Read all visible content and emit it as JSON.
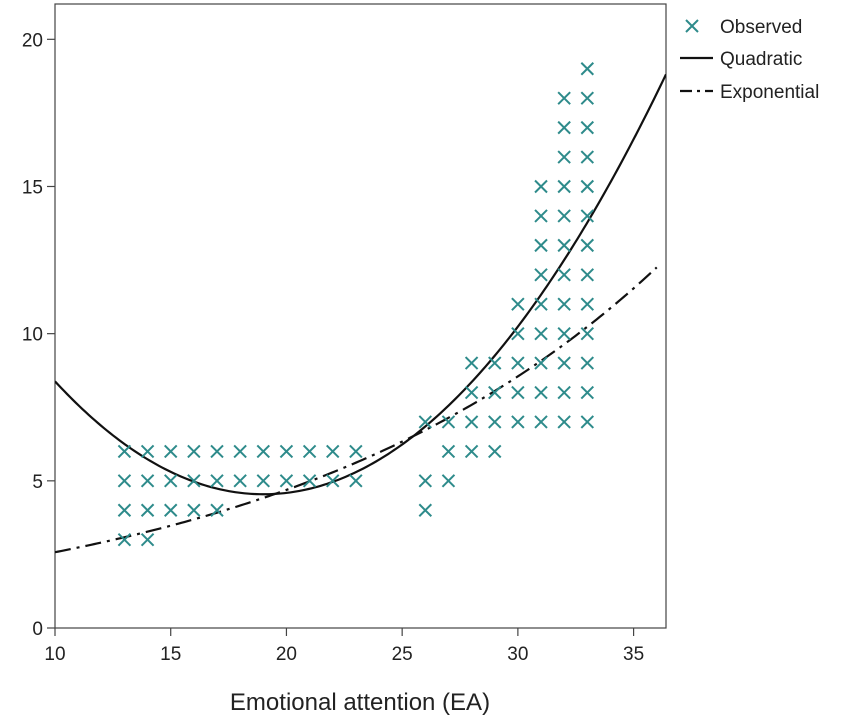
{
  "chart_data": {
    "type": "scatter",
    "title": "",
    "xlabel": "Emotional attention (EA)",
    "ylabel": "",
    "xlim": [
      10,
      36.4
    ],
    "ylim": [
      0,
      21.2
    ],
    "xticks": [
      10,
      15,
      20,
      25,
      30,
      35
    ],
    "yticks": [
      0,
      5,
      10,
      15,
      20
    ],
    "grid": false,
    "legend_position": "outside-top-right",
    "series": [
      {
        "name": "Observed",
        "kind": "scatter",
        "marker": "x",
        "color": "#2e8b8b",
        "points": [
          [
            13,
            3
          ],
          [
            13,
            4
          ],
          [
            13,
            5
          ],
          [
            13,
            6
          ],
          [
            14,
            3
          ],
          [
            14,
            4
          ],
          [
            14,
            5
          ],
          [
            14,
            6
          ],
          [
            15,
            4
          ],
          [
            15,
            5
          ],
          [
            15,
            6
          ],
          [
            16,
            4
          ],
          [
            16,
            5
          ],
          [
            16,
            6
          ],
          [
            17,
            4
          ],
          [
            17,
            5
          ],
          [
            17,
            6
          ],
          [
            18,
            5
          ],
          [
            18,
            6
          ],
          [
            19,
            5
          ],
          [
            19,
            6
          ],
          [
            20,
            5
          ],
          [
            20,
            6
          ],
          [
            21,
            5
          ],
          [
            21,
            6
          ],
          [
            22,
            5
          ],
          [
            22,
            6
          ],
          [
            23,
            5
          ],
          [
            23,
            6
          ],
          [
            26,
            4
          ],
          [
            26,
            5
          ],
          [
            26,
            7
          ],
          [
            27,
            5
          ],
          [
            27,
            6
          ],
          [
            27,
            7
          ],
          [
            28,
            6
          ],
          [
            28,
            7
          ],
          [
            28,
            8
          ],
          [
            28,
            9
          ],
          [
            29,
            6
          ],
          [
            29,
            7
          ],
          [
            29,
            8
          ],
          [
            29,
            9
          ],
          [
            30,
            7
          ],
          [
            30,
            8
          ],
          [
            30,
            9
          ],
          [
            30,
            10
          ],
          [
            30,
            11
          ],
          [
            31,
            7
          ],
          [
            31,
            8
          ],
          [
            31,
            9
          ],
          [
            31,
            10
          ],
          [
            31,
            11
          ],
          [
            31,
            12
          ],
          [
            31,
            13
          ],
          [
            31,
            14
          ],
          [
            31,
            15
          ],
          [
            32,
            7
          ],
          [
            32,
            8
          ],
          [
            32,
            9
          ],
          [
            32,
            10
          ],
          [
            32,
            11
          ],
          [
            32,
            12
          ],
          [
            32,
            13
          ],
          [
            32,
            14
          ],
          [
            32,
            15
          ],
          [
            32,
            16
          ],
          [
            32,
            17
          ],
          [
            32,
            18
          ],
          [
            33,
            7
          ],
          [
            33,
            8
          ],
          [
            33,
            9
          ],
          [
            33,
            10
          ],
          [
            33,
            11
          ],
          [
            33,
            12
          ],
          [
            33,
            13
          ],
          [
            33,
            14
          ],
          [
            33,
            15
          ],
          [
            33,
            16
          ],
          [
            33,
            17
          ],
          [
            33,
            18
          ],
          [
            33,
            19
          ]
        ]
      },
      {
        "name": "Quadratic",
        "kind": "line",
        "style": "solid",
        "color": "#111111",
        "coefficients": {
          "a": 0.0472,
          "b": -1.795,
          "c": 21.61
        },
        "x_range": [
          10,
          36.4
        ]
      },
      {
        "name": "Exponential",
        "kind": "line",
        "style": "dashdot",
        "color": "#111111",
        "coefficients": {
          "a": 1.413,
          "b": 0.06
        },
        "x_range": [
          10,
          36
        ]
      }
    ]
  }
}
